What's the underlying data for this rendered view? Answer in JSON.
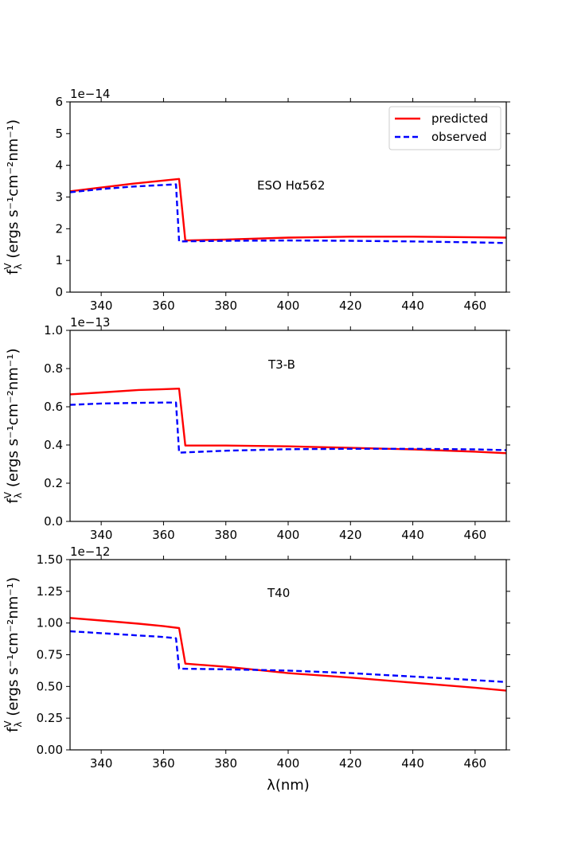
{
  "chart_data": [
    {
      "type": "line",
      "annotation": "ESO Hα562",
      "offset_label": "1e−14",
      "ylabel_main": "f",
      "ylabel_sub": "λ",
      "ylabel_sup": "V",
      "ylabel_rest": " (ergs s⁻¹cm⁻²nm⁻¹)",
      "xlim": [
        330,
        470
      ],
      "ylim": [
        0,
        6
      ],
      "xticks": [
        340,
        360,
        380,
        400,
        420,
        440,
        460
      ],
      "xtick_labels": [
        "340",
        "360",
        "380",
        "400",
        "420",
        "440",
        "460"
      ],
      "yticks": [
        0,
        1,
        2,
        3,
        4,
        5,
        6
      ],
      "ytick_labels": [
        "0",
        "1",
        "2",
        "3",
        "4",
        "5",
        "6"
      ],
      "legend": {
        "placement": "top-right",
        "entries": [
          "predicted",
          "observed"
        ]
      },
      "series": [
        {
          "name": "predicted",
          "color": "#ff0000",
          "style": "solid",
          "x": [
            330,
            340,
            350,
            360,
            365,
            367,
            380,
            400,
            420,
            440,
            460,
            470
          ],
          "y": [
            3.18,
            3.3,
            3.42,
            3.52,
            3.57,
            1.63,
            1.66,
            1.72,
            1.75,
            1.75,
            1.73,
            1.72
          ]
        },
        {
          "name": "observed",
          "color": "#0000ff",
          "style": "dashed",
          "x": [
            330,
            340,
            350,
            360,
            364,
            365,
            380,
            400,
            420,
            440,
            460,
            470
          ],
          "y": [
            3.15,
            3.25,
            3.33,
            3.38,
            3.4,
            1.6,
            1.62,
            1.63,
            1.62,
            1.6,
            1.57,
            1.55
          ]
        }
      ]
    },
    {
      "type": "line",
      "annotation": "T3-B",
      "offset_label": "1e−13",
      "ylabel_main": "f",
      "ylabel_sub": "λ",
      "ylabel_sup": "V",
      "ylabel_rest": " (ergs s⁻¹cm⁻²nm⁻¹)",
      "xlim": [
        330,
        470
      ],
      "ylim": [
        0,
        1.0
      ],
      "xticks": [
        340,
        360,
        380,
        400,
        420,
        440,
        460
      ],
      "xtick_labels": [
        "340",
        "360",
        "380",
        "400",
        "420",
        "440",
        "460"
      ],
      "yticks": [
        0,
        0.2,
        0.4,
        0.6,
        0.8,
        1.0
      ],
      "ytick_labels": [
        "0.0",
        "0.2",
        "0.4",
        "0.6",
        "0.8",
        "1.0"
      ],
      "series": [
        {
          "name": "predicted",
          "color": "#ff0000",
          "style": "solid",
          "x": [
            330,
            340,
            352,
            360,
            365,
            367,
            380,
            400,
            420,
            440,
            460,
            470
          ],
          "y": [
            0.665,
            0.675,
            0.688,
            0.692,
            0.695,
            0.397,
            0.397,
            0.393,
            0.385,
            0.377,
            0.365,
            0.357
          ]
        },
        {
          "name": "observed",
          "color": "#0000ff",
          "style": "dashed",
          "x": [
            330,
            340,
            350,
            360,
            364,
            365,
            380,
            400,
            420,
            440,
            460,
            470
          ],
          "y": [
            0.61,
            0.617,
            0.62,
            0.622,
            0.622,
            0.36,
            0.37,
            0.378,
            0.38,
            0.38,
            0.377,
            0.373
          ]
        }
      ]
    },
    {
      "type": "line",
      "annotation": "T40",
      "offset_label": "1e−12",
      "ylabel_main": "f",
      "ylabel_sub": "λ",
      "ylabel_sup": "V",
      "ylabel_rest": " (ergs s⁻¹cm⁻²nm⁻¹)",
      "xlabel": "λ(nm)",
      "xlim": [
        330,
        470
      ],
      "ylim": [
        0,
        1.5
      ],
      "xticks": [
        340,
        360,
        380,
        400,
        420,
        440,
        460
      ],
      "xtick_labels": [
        "340",
        "360",
        "380",
        "400",
        "420",
        "440",
        "460"
      ],
      "yticks": [
        0,
        0.25,
        0.5,
        0.75,
        1.0,
        1.25,
        1.5
      ],
      "ytick_labels": [
        "0.00",
        "0.25",
        "0.50",
        "0.75",
        "1.00",
        "1.25",
        "1.50"
      ],
      "series": [
        {
          "name": "predicted",
          "color": "#ff0000",
          "style": "solid",
          "x": [
            330,
            340,
            352,
            360,
            365,
            367,
            380,
            400,
            420,
            440,
            460,
            470
          ],
          "y": [
            1.04,
            1.02,
            0.995,
            0.975,
            0.96,
            0.68,
            0.655,
            0.605,
            0.57,
            0.53,
            0.49,
            0.467
          ]
        },
        {
          "name": "observed",
          "color": "#0000ff",
          "style": "dashed",
          "x": [
            330,
            340,
            350,
            360,
            364,
            365,
            380,
            400,
            420,
            440,
            460,
            470
          ],
          "y": [
            0.935,
            0.92,
            0.905,
            0.89,
            0.88,
            0.64,
            0.635,
            0.625,
            0.605,
            0.578,
            0.55,
            0.535
          ]
        }
      ]
    }
  ]
}
